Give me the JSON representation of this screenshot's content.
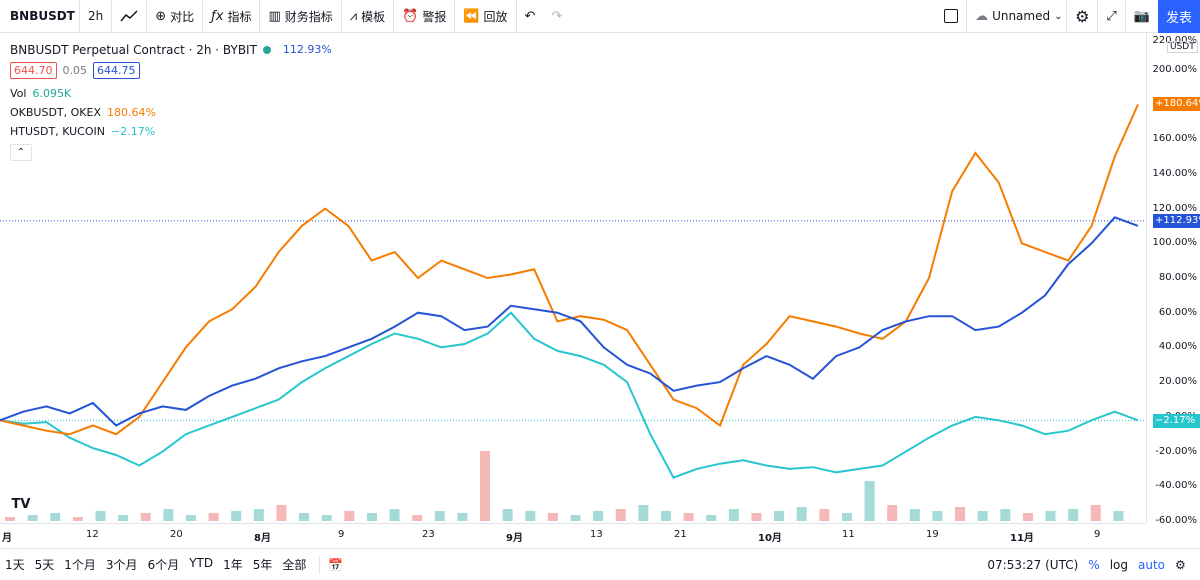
{
  "toolbar": {
    "symbol": "BNBUSDT",
    "interval": "2h",
    "compare": "对比",
    "indicators": "指标",
    "financials": "财务指标",
    "templates": "模板",
    "alert": "警报",
    "replay": "回放",
    "layout_name": "Unnamed",
    "publish": "发表"
  },
  "legend": {
    "title": "BNBUSDT Perpetual Contract · 2h · BYBIT",
    "change": "112.93%",
    "bid": "644.70",
    "spread": "0.05",
    "ask": "644.75",
    "vol_label": "Vol",
    "vol_value": "6.095K",
    "comp1_label": "OKBUSDT, OKEX",
    "comp1_value": "180.64%",
    "comp2_label": "HTUSDT, KUCOIN",
    "comp2_value": "−2.17%"
  },
  "price_scale": {
    "currency": "USDT",
    "badges": [
      "+180.64%",
      "+112.93%",
      "−2.17%"
    ]
  },
  "time_axis": [
    "月",
    "12",
    "20",
    "8月",
    "9",
    "23",
    "9月",
    "13",
    "21",
    "10月",
    "11",
    "19",
    "11月",
    "9"
  ],
  "bottom_bar": {
    "ranges": [
      "1天",
      "5天",
      "1个月",
      "3个月",
      "6个月",
      "YTD",
      "1年",
      "5年",
      "全部"
    ],
    "clock": "07:53:27 (UTC)",
    "pct": "%",
    "log": "log",
    "auto": "auto"
  },
  "colors": {
    "bnb": "#2453d6",
    "okb": "#f57c00",
    "ht": "#26c6cf",
    "down": "#ef5350"
  },
  "chart_data": {
    "type": "line",
    "ylabel": "",
    "ylim": [
      -60,
      220
    ],
    "yticks": [
      220,
      200,
      180,
      160,
      140,
      120,
      100,
      80,
      60,
      40,
      20,
      0,
      -20,
      -40,
      -60
    ],
    "series": [
      {
        "name": "BNBUSDT",
        "values": [
          -2,
          3,
          6,
          2,
          8,
          -5,
          2,
          6,
          4,
          12,
          18,
          22,
          28,
          32,
          35,
          40,
          45,
          52,
          60,
          58,
          50,
          52,
          64,
          62,
          60,
          55,
          40,
          30,
          25,
          15,
          18,
          20,
          28,
          35,
          30,
          22,
          35,
          40,
          50,
          55,
          58,
          58,
          50,
          52,
          60,
          70,
          88,
          100,
          115,
          110
        ]
      },
      {
        "name": "OKBUSDT",
        "values": [
          -2,
          -5,
          -8,
          -10,
          -5,
          -10,
          0,
          20,
          40,
          55,
          62,
          75,
          95,
          110,
          120,
          110,
          90,
          95,
          80,
          90,
          85,
          80,
          82,
          85,
          55,
          58,
          56,
          50,
          30,
          10,
          5,
          -5,
          30,
          42,
          58,
          55,
          52,
          48,
          45,
          55,
          80,
          130,
          152,
          135,
          100,
          95,
          90,
          110,
          150,
          180
        ]
      },
      {
        "name": "HTUSDT",
        "values": [
          -2,
          -4,
          -3,
          -12,
          -18,
          -22,
          -28,
          -20,
          -10,
          -5,
          0,
          5,
          10,
          20,
          28,
          35,
          42,
          48,
          45,
          40,
          42,
          48,
          60,
          45,
          38,
          35,
          30,
          20,
          -10,
          -35,
          -30,
          -27,
          -25,
          -28,
          -30,
          -29,
          -32,
          -30,
          -28,
          -20,
          -12,
          -5,
          0,
          -2,
          -5,
          -10,
          -8,
          -2,
          3,
          -2
        ]
      },
      {
        "name": "Vol",
        "values": [
          2,
          3,
          4,
          2,
          5,
          3,
          4,
          6,
          3,
          4,
          5,
          6,
          8,
          4,
          3,
          5,
          4,
          6,
          3,
          5,
          4,
          35,
          6,
          5,
          4,
          3,
          5,
          6,
          8,
          5,
          4,
          3,
          6,
          4,
          5,
          7,
          6,
          4,
          20,
          8,
          6,
          5,
          7,
          5,
          6,
          4,
          5,
          6,
          8,
          5
        ]
      }
    ]
  }
}
